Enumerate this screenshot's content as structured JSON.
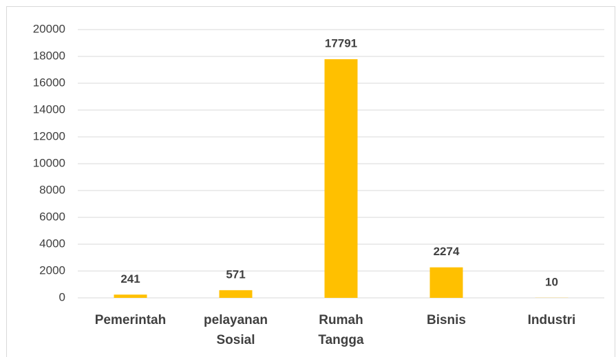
{
  "chart_data": {
    "type": "bar",
    "categories": [
      "Pemerintah",
      "pelayanan Sosial",
      "Rumah Tangga",
      "Bisnis",
      "Industri"
    ],
    "values": [
      241,
      571,
      17791,
      2274,
      10
    ],
    "color": "#ffc000",
    "ylim": [
      0,
      20000
    ],
    "yticks": [
      0,
      2000,
      4000,
      6000,
      8000,
      10000,
      12000,
      14000,
      16000,
      18000,
      20000
    ],
    "grid": true
  }
}
